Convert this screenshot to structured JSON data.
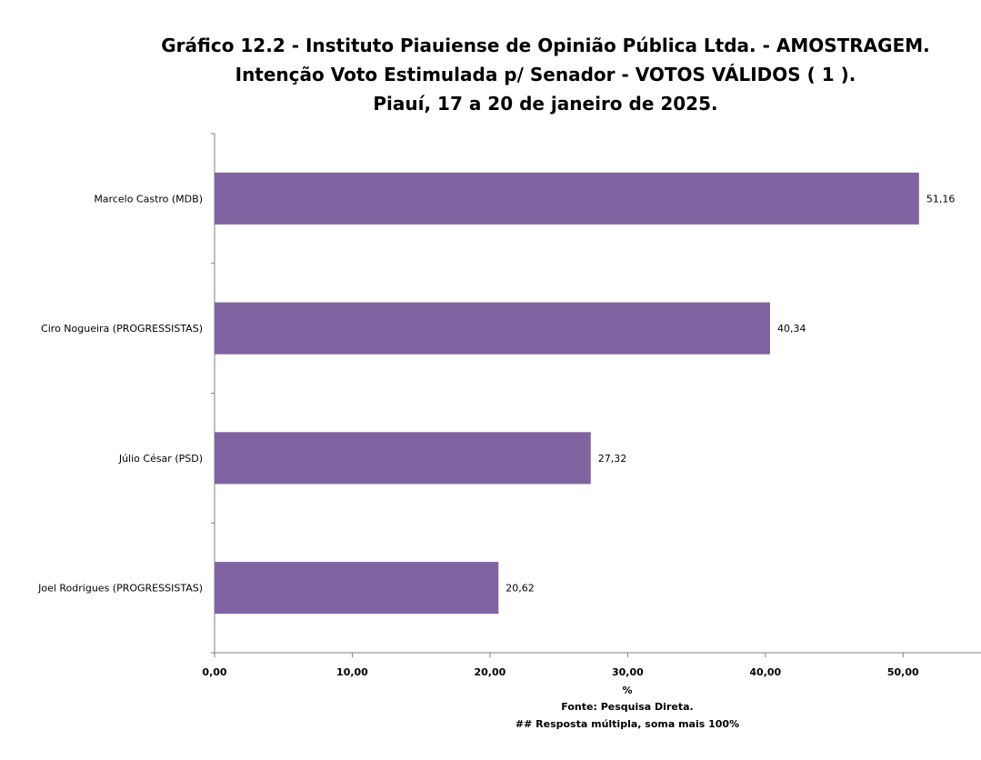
{
  "title": {
    "line1": "Gráfico   12.2   -   Instituto Piauiense de Opinião Pública Ltda. - AMOSTRAGEM.",
    "line2": "Intenção Voto Estimulada p/ Senador - VOTOS VÁLIDOS ( 1 ).",
    "line3": "Piauí, 17 a 20 de janeiro de 2025."
  },
  "chart_data": {
    "type": "bar",
    "orientation": "horizontal",
    "categories": [
      "Marcelo Castro (MDB)",
      "Ciro Nogueira (PROGRESSISTAS)",
      "Júlio César (PSD)",
      "Joel Rodrigues (PROGRESSISTAS)"
    ],
    "values": [
      51.16,
      40.34,
      27.32,
      20.62
    ],
    "value_labels": [
      "51,16",
      "40,34",
      "27,32",
      "20,62"
    ],
    "xlabel": "%",
    "xlim": [
      0,
      55
    ],
    "x_ticks": [
      0,
      10,
      20,
      30,
      40,
      50
    ],
    "x_tick_labels": [
      "0,00",
      "10,00",
      "20,00",
      "30,00",
      "40,00",
      "50,00"
    ],
    "bar_color": "#8064a2",
    "grid": false,
    "legend": "none"
  },
  "footer": {
    "source": "Fonte: Pesquisa Direta.",
    "note": "##  Resposta múltipla, soma mais 100%"
  }
}
